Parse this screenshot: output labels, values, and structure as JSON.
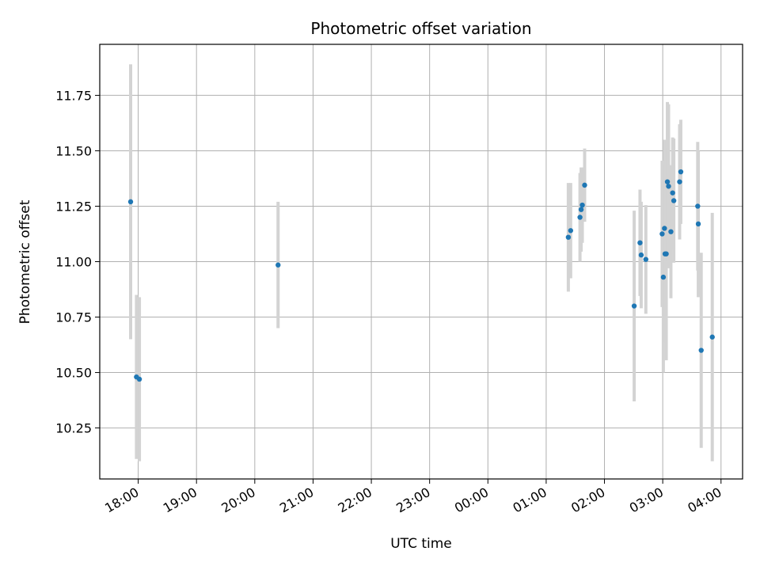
{
  "chart_data": {
    "type": "scatter",
    "title": "Photometric offset variation",
    "xlabel": "UTC time",
    "ylabel": "Photometric offset",
    "grid": true,
    "x_unit": "UTC hours (values past 24 fall on the following day)",
    "xlim": [
      17.34,
      28.37
    ],
    "ylim": [
      10.02,
      11.98
    ],
    "xticks": [
      {
        "value": 18,
        "label": "18:00"
      },
      {
        "value": 19,
        "label": "19:00"
      },
      {
        "value": 20,
        "label": "20:00"
      },
      {
        "value": 21,
        "label": "21:00"
      },
      {
        "value": 22,
        "label": "22:00"
      },
      {
        "value": 23,
        "label": "23:00"
      },
      {
        "value": 24,
        "label": "00:00"
      },
      {
        "value": 25,
        "label": "01:00"
      },
      {
        "value": 26,
        "label": "02:00"
      },
      {
        "value": 27,
        "label": "03:00"
      },
      {
        "value": 28,
        "label": "04:00"
      }
    ],
    "yticks": [
      {
        "value": 10.25,
        "label": "10.25"
      },
      {
        "value": 10.5,
        "label": "10.50"
      },
      {
        "value": 10.75,
        "label": "10.75"
      },
      {
        "value": 11.0,
        "label": "11.00"
      },
      {
        "value": 11.25,
        "label": "11.25"
      },
      {
        "value": 11.5,
        "label": "11.50"
      },
      {
        "value": 11.75,
        "label": "11.75"
      }
    ],
    "point_color": "#1f77b4",
    "errorbar_color": "#d3d3d3",
    "points": [
      {
        "x": 17.87,
        "y": 11.27,
        "err": 0.62
      },
      {
        "x": 17.97,
        "y": 10.48,
        "err": 0.37
      },
      {
        "x": 18.02,
        "y": 10.47,
        "err": 0.37
      },
      {
        "x": 20.4,
        "y": 10.985,
        "err": 0.285
      },
      {
        "x": 25.38,
        "y": 11.11,
        "err": 0.245
      },
      {
        "x": 25.42,
        "y": 11.14,
        "err": 0.215
      },
      {
        "x": 25.58,
        "y": 11.2,
        "err": 0.2
      },
      {
        "x": 25.6,
        "y": 11.235,
        "err": 0.19
      },
      {
        "x": 25.62,
        "y": 11.255,
        "err": 0.17
      },
      {
        "x": 25.66,
        "y": 11.345,
        "err": 0.165
      },
      {
        "x": 26.51,
        "y": 10.8,
        "err": 0.43
      },
      {
        "x": 26.61,
        "y": 11.085,
        "err": 0.24
      },
      {
        "x": 26.63,
        "y": 11.03,
        "err": 0.24
      },
      {
        "x": 26.71,
        "y": 11.01,
        "err": 0.245
      },
      {
        "x": 26.99,
        "y": 11.125,
        "err": 0.33
      },
      {
        "x": 27.01,
        "y": 10.93,
        "err": 0.43
      },
      {
        "x": 27.03,
        "y": 11.15,
        "err": 0.4
      },
      {
        "x": 27.04,
        "y": 11.035,
        "err": 0.4
      },
      {
        "x": 27.06,
        "y": 11.035,
        "err": 0.48
      },
      {
        "x": 27.08,
        "y": 11.36,
        "err": 0.36
      },
      {
        "x": 27.1,
        "y": 11.34,
        "err": 0.37
      },
      {
        "x": 27.14,
        "y": 11.135,
        "err": 0.3
      },
      {
        "x": 27.17,
        "y": 11.31,
        "err": 0.25
      },
      {
        "x": 27.19,
        "y": 11.275,
        "err": 0.28
      },
      {
        "x": 27.29,
        "y": 11.36,
        "err": 0.26
      },
      {
        "x": 27.31,
        "y": 11.405,
        "err": 0.235
      },
      {
        "x": 27.6,
        "y": 11.25,
        "err": 0.29
      },
      {
        "x": 27.61,
        "y": 11.17,
        "err": 0.33
      },
      {
        "x": 27.66,
        "y": 10.6,
        "err": 0.44
      },
      {
        "x": 27.85,
        "y": 10.66,
        "err": 0.56
      }
    ]
  }
}
